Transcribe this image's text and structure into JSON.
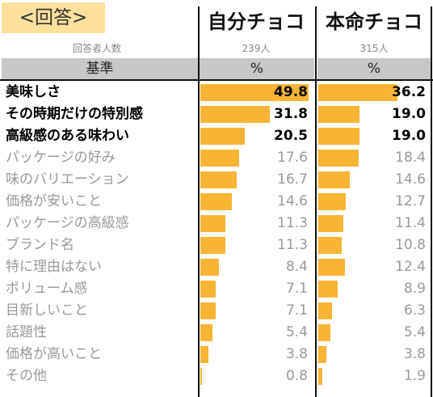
{
  "badge": "<回答>",
  "respondents_label": "回答者人数",
  "header_label": "基準",
  "chart_data": {
    "type": "bar",
    "orientation": "horizontal",
    "categories": [
      "美味しさ",
      "その時期だけの特別感",
      "高級感のある味わい",
      "パッケージの好み",
      "味のバリエーション",
      "価格が安いこと",
      "パッケージの高級感",
      "ブランド名",
      "特に理由はない",
      "ボリューム感",
      "目新しいこと",
      "話題性",
      "価格が高いこと",
      "その他"
    ],
    "highlighted_count": 3,
    "unit": "%",
    "xlim": [
      0,
      50
    ],
    "bar_color": "#f8b435",
    "series": [
      {
        "name": "自分チョコ",
        "respondents": "239人",
        "values": [
          49.8,
          31.8,
          20.5,
          17.6,
          16.7,
          14.6,
          11.3,
          11.3,
          8.4,
          7.1,
          7.1,
          5.4,
          3.8,
          0.8
        ]
      },
      {
        "name": "本命チョコ",
        "respondents": "315人",
        "values": [
          36.2,
          19.0,
          19.0,
          18.4,
          14.6,
          12.7,
          11.4,
          10.8,
          12.4,
          8.9,
          6.3,
          5.4,
          3.8,
          1.9
        ]
      }
    ]
  }
}
